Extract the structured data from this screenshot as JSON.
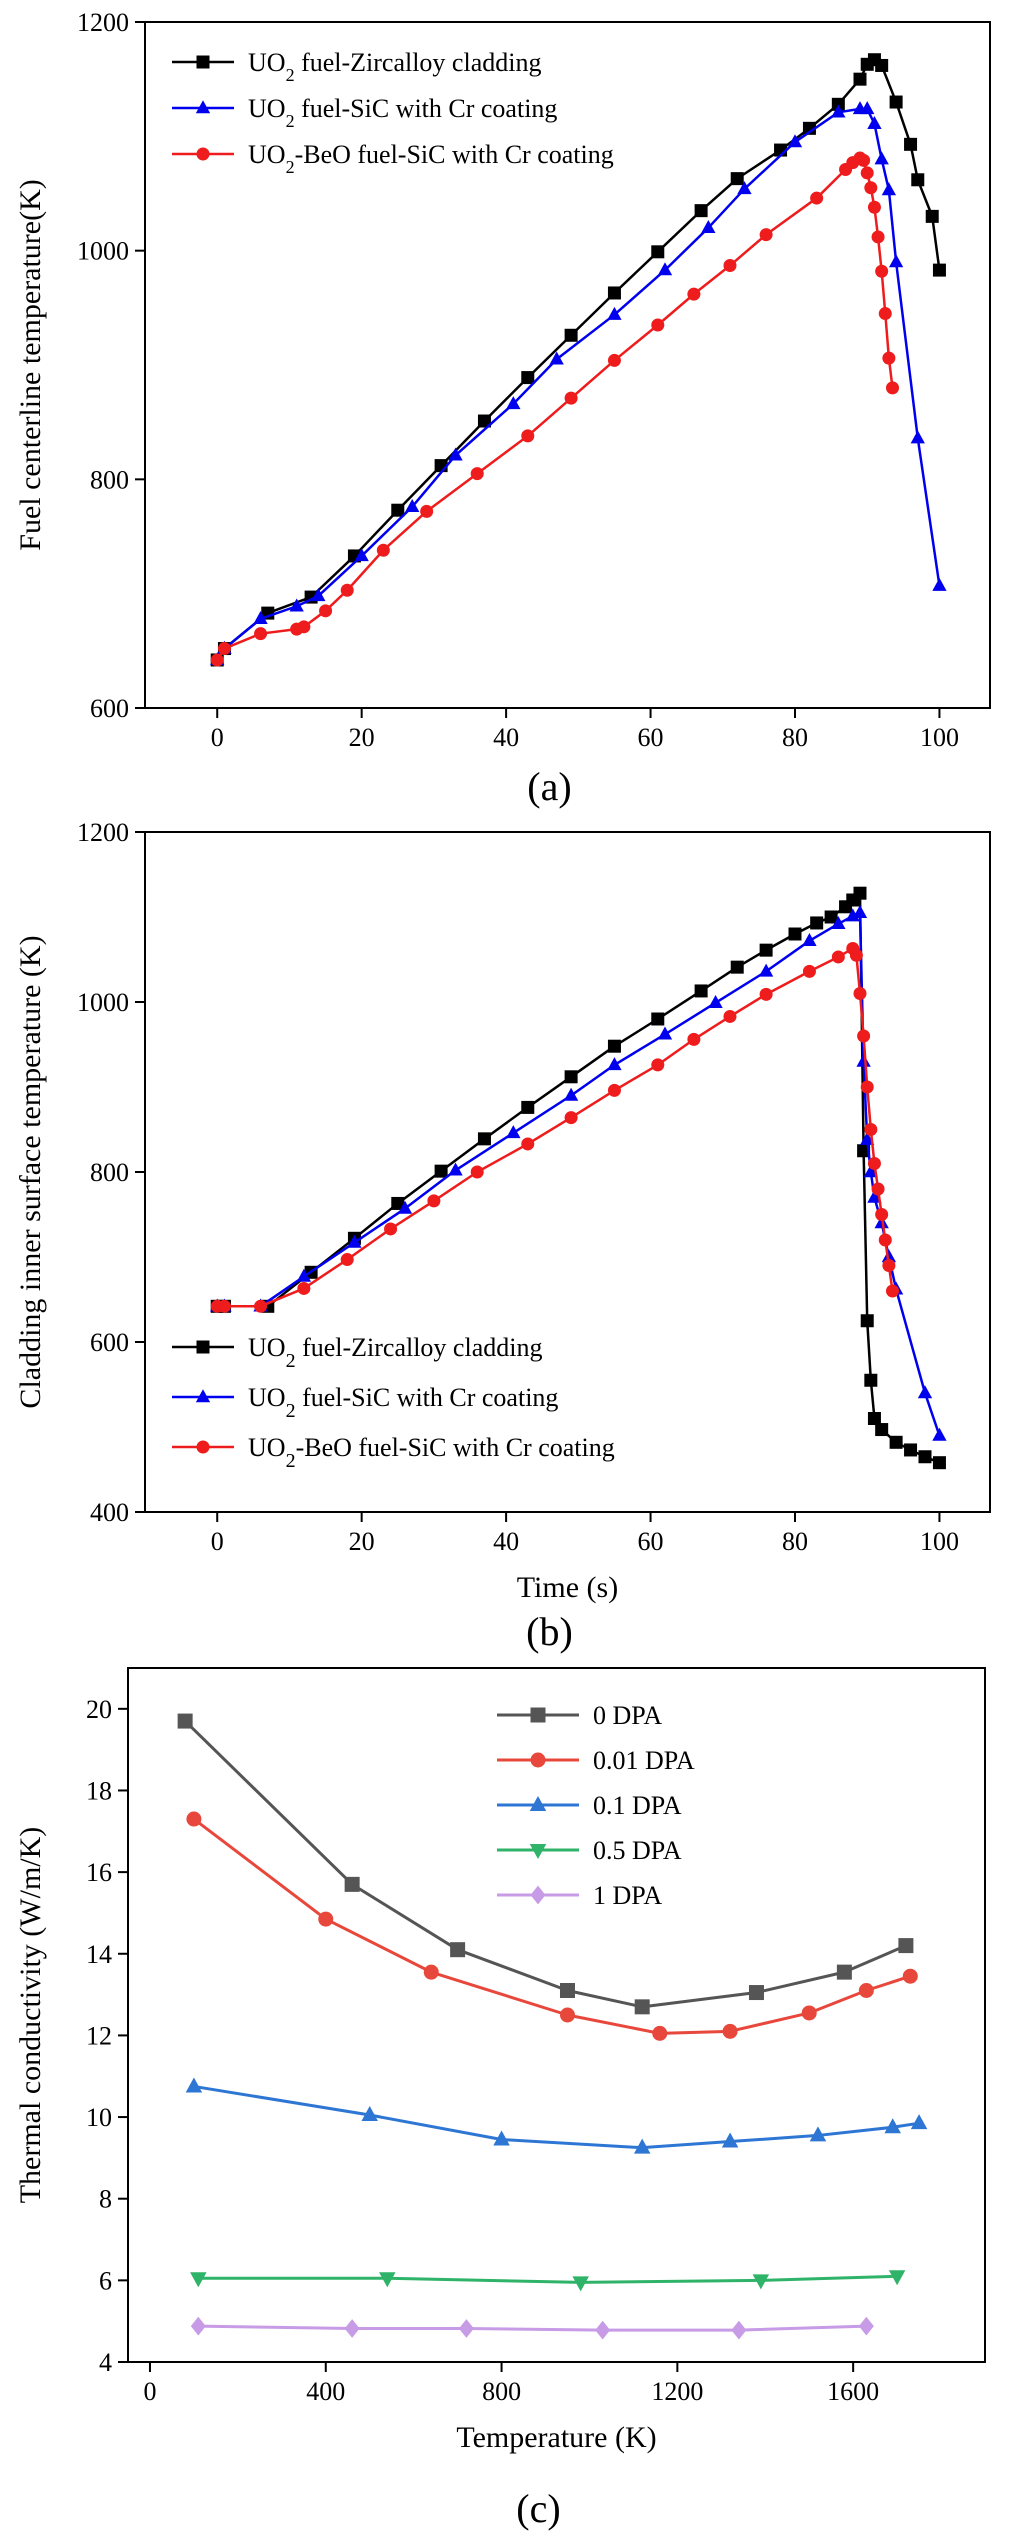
{
  "chart_data": [
    {
      "type": "line",
      "panel_label": "(a)",
      "xlabel": "",
      "ylabel": "Fuel centerline temperature(K)",
      "xlim": [
        -10,
        107
      ],
      "ylim": [
        600,
        1200
      ],
      "xticks": [
        0,
        20,
        40,
        60,
        80,
        100
      ],
      "yticks": [
        600,
        800,
        1000,
        1200
      ],
      "legend_position": "top-left",
      "grid": false,
      "series": [
        {
          "name": "UO2 fuel-Zircalloy cladding",
          "name_base": "UO",
          "name_sub": "2",
          "name_rest": " fuel-Zircalloy cladding",
          "color": "#000000",
          "marker": "square",
          "x": [
            0,
            1,
            7,
            13,
            19,
            25,
            31,
            37,
            43,
            49,
            55,
            61,
            67,
            72,
            78,
            82,
            86,
            89,
            90,
            91,
            92,
            94,
            96,
            97,
            99,
            100
          ],
          "y": [
            642,
            652,
            683,
            697,
            733,
            773,
            812,
            851,
            889,
            926,
            963,
            999,
            1035,
            1063,
            1088,
            1107,
            1128,
            1150,
            1163,
            1167,
            1162,
            1130,
            1093,
            1062,
            1030,
            983
          ]
        },
        {
          "name": "UO2 fuel-SiC with Cr coating",
          "name_base": "UO",
          "name_sub": "2",
          "name_rest": " fuel-SiC with Cr coating",
          "color": "#0000ee",
          "marker": "triangle",
          "x": [
            0,
            1,
            6,
            11,
            14,
            20,
            27,
            33,
            41,
            47,
            55,
            62,
            68,
            73,
            80,
            86,
            89,
            90,
            91,
            92,
            93,
            94,
            97,
            100
          ],
          "y": [
            642,
            652,
            678,
            689,
            698,
            733,
            776,
            821,
            866,
            905,
            944,
            983,
            1020,
            1054,
            1095,
            1121,
            1124,
            1124,
            1111,
            1080,
            1053,
            990,
            836,
            707
          ]
        },
        {
          "name": "UO2-BeO fuel-SiC with Cr coating",
          "name_base": "UO",
          "name_sub": "2",
          "name_rest": "-BeO fuel-SiC with Cr coating",
          "color": "#ee1c1c",
          "marker": "circle",
          "x": [
            0,
            1,
            6,
            11,
            12,
            15,
            18,
            23,
            29,
            36,
            43,
            49,
            55,
            61,
            66,
            71,
            76,
            83,
            87,
            88,
            89,
            89.5,
            90,
            90.5,
            91,
            91.5,
            92,
            92.5,
            93,
            93.5
          ],
          "y": [
            642,
            652,
            665,
            669,
            671,
            685,
            703,
            738,
            772,
            805,
            838,
            871,
            904,
            935,
            962,
            987,
            1014,
            1046,
            1071,
            1077,
            1081,
            1079,
            1068,
            1055,
            1038,
            1012,
            982,
            945,
            906,
            880
          ]
        }
      ]
    },
    {
      "type": "line",
      "panel_label": "(b)",
      "xlabel": "Time (s)",
      "ylabel": "Cladding inner surface temperature (K)",
      "xlim": [
        -10,
        107
      ],
      "ylim": [
        400,
        1200
      ],
      "xticks": [
        0,
        20,
        40,
        60,
        80,
        100
      ],
      "yticks": [
        400,
        600,
        800,
        1000,
        1200
      ],
      "legend_position": "bottom-left",
      "grid": false,
      "series": [
        {
          "name": "UO2 fuel-Zircalloy cladding",
          "name_base": "UO",
          "name_sub": "2",
          "name_rest": " fuel-Zircalloy cladding",
          "color": "#000000",
          "marker": "square",
          "x": [
            0,
            1,
            7,
            13,
            19,
            25,
            31,
            37,
            43,
            49,
            55,
            61,
            67,
            72,
            76,
            80,
            83,
            85,
            87,
            88,
            89,
            89.5,
            90,
            90.5,
            91,
            92,
            94,
            96,
            98,
            100
          ],
          "y": [
            642,
            642,
            642,
            682,
            722,
            763,
            801,
            839,
            876,
            912,
            948,
            980,
            1013,
            1041,
            1061,
            1080,
            1093,
            1100,
            1112,
            1120,
            1128,
            825,
            625,
            555,
            510,
            497,
            482,
            473,
            465,
            458
          ]
        },
        {
          "name": "UO2 fuel-SiC with Cr coating",
          "name_base": "UO",
          "name_sub": "2",
          "name_rest": " fuel-SiC with Cr coating",
          "color": "#0000ee",
          "marker": "triangle",
          "x": [
            0,
            1,
            6,
            12,
            19,
            26,
            33,
            41,
            49,
            55,
            62,
            69,
            76,
            82,
            86,
            88,
            89,
            89.5,
            90,
            90.5,
            91,
            92,
            93,
            94,
            98,
            100
          ],
          "y": [
            642,
            642,
            642,
            677,
            717,
            757,
            802,
            846,
            890,
            926,
            962,
            999,
            1036,
            1072,
            1092,
            1101,
            1105,
            930,
            838,
            800,
            770,
            740,
            700,
            662,
            540,
            490
          ]
        },
        {
          "name": "UO2-BeO fuel-SiC with Cr coating",
          "name_base": "UO",
          "name_sub": "2",
          "name_rest": "-BeO fuel-SiC with Cr coating",
          "color": "#ee1c1c",
          "marker": "circle",
          "x": [
            0,
            1,
            6,
            12,
            18,
            24,
            30,
            36,
            43,
            49,
            55,
            61,
            66,
            71,
            76,
            82,
            86,
            88,
            88.5,
            89,
            89.5,
            90,
            90.5,
            91,
            91.5,
            92,
            92.5,
            93,
            93.5
          ],
          "y": [
            642,
            642,
            642,
            663,
            697,
            733,
            766,
            800,
            833,
            864,
            896,
            926,
            956,
            983,
            1009,
            1036,
            1053,
            1063,
            1055,
            1010,
            960,
            900,
            850,
            810,
            780,
            750,
            720,
            690,
            660
          ]
        }
      ]
    },
    {
      "type": "line",
      "panel_label": "(c)",
      "xlabel": "Temperature (K)",
      "ylabel": "Thermal conductivity (W/m/K)",
      "xlim": [
        -50,
        1900
      ],
      "ylim": [
        4,
        21
      ],
      "xticks": [
        0,
        400,
        800,
        1200,
        1600
      ],
      "yticks": [
        4,
        6,
        8,
        10,
        12,
        14,
        16,
        18,
        20
      ],
      "legend_position": "top-center",
      "grid": false,
      "series": [
        {
          "name": "0 DPA",
          "color": "#555555",
          "marker": "square",
          "x": [
            80,
            460,
            700,
            950,
            1120,
            1380,
            1580,
            1720
          ],
          "y": [
            19.7,
            15.7,
            14.1,
            13.1,
            12.7,
            13.05,
            13.55,
            14.2
          ]
        },
        {
          "name": "0.01 DPA",
          "color": "#e8473b",
          "marker": "circle",
          "x": [
            100,
            400,
            640,
            950,
            1160,
            1320,
            1500,
            1630,
            1730
          ],
          "y": [
            17.3,
            14.85,
            13.55,
            12.5,
            12.05,
            12.1,
            12.55,
            13.1,
            13.45
          ]
        },
        {
          "name": "0.1 DPA",
          "color": "#2d76d4",
          "marker": "triangle",
          "x": [
            100,
            500,
            800,
            1120,
            1320,
            1520,
            1690,
            1750
          ],
          "y": [
            10.75,
            10.05,
            9.45,
            9.25,
            9.4,
            9.55,
            9.75,
            9.85
          ]
        },
        {
          "name": "0.5 DPA",
          "color": "#2fb368",
          "marker": "triangle-down",
          "x": [
            110,
            540,
            980,
            1390,
            1700
          ],
          "y": [
            6.05,
            6.05,
            5.95,
            6.0,
            6.1
          ]
        },
        {
          "name": "1 DPA",
          "color": "#c79be6",
          "marker": "diamond",
          "x": [
            110,
            460,
            720,
            1030,
            1340,
            1630
          ],
          "y": [
            4.88,
            4.82,
            4.82,
            4.78,
            4.78,
            4.88
          ]
        }
      ]
    }
  ]
}
